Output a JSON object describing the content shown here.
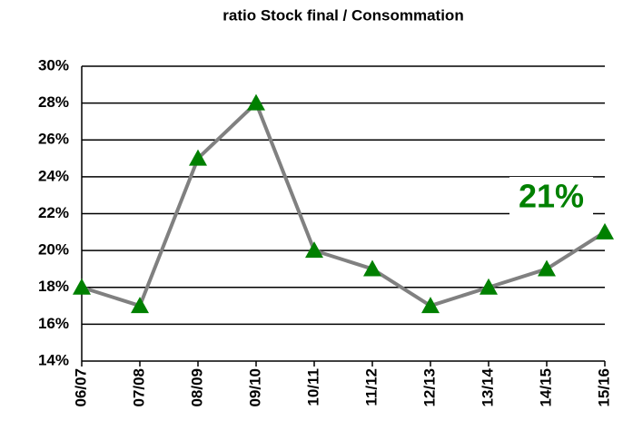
{
  "chart_data": {
    "type": "line",
    "title": "ratio Stock final / Consommation",
    "categories": [
      "06/07",
      "07/08",
      "08/09",
      "09/10",
      "10/11",
      "11/12",
      "12/13",
      "13/14",
      "14/15",
      "15/16"
    ],
    "series": [
      {
        "name": "ratio",
        "color": "#808080",
        "marker_color": "#008000",
        "values": [
          18,
          17,
          25,
          28,
          20,
          19,
          17,
          18,
          19,
          21
        ]
      }
    ],
    "ylim": [
      14,
      30
    ],
    "yticks": [
      {
        "value": 14,
        "label": "14%"
      },
      {
        "value": 16,
        "label": "16%"
      },
      {
        "value": 18,
        "label": "18%"
      },
      {
        "value": 20,
        "label": "20%"
      },
      {
        "value": 22,
        "label": "22%"
      },
      {
        "value": 24,
        "label": "24%"
      },
      {
        "value": 26,
        "label": "26%"
      },
      {
        "value": 28,
        "label": "28%"
      },
      {
        "value": 30,
        "label": "30%"
      }
    ],
    "grid": true,
    "annotations": [
      {
        "text": "21%",
        "color": "#008000"
      }
    ]
  }
}
